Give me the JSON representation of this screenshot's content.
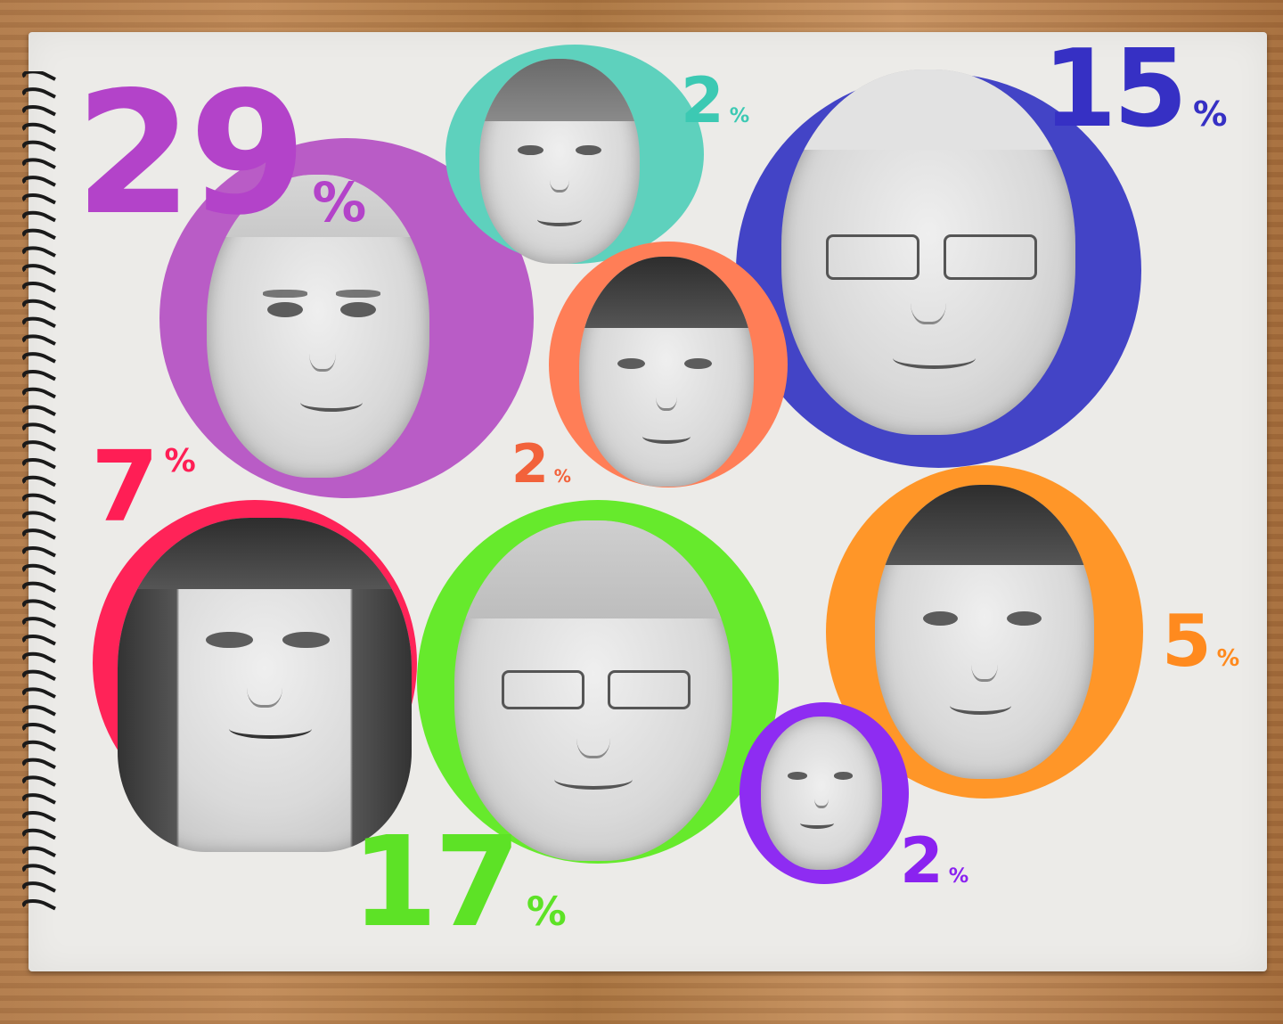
{
  "labels": {
    "biden": {
      "value": "29",
      "sign": "%",
      "color": "#b343c9"
    },
    "o_rourke": {
      "value": "2",
      "sign": "%",
      "color": "#3cc9b3"
    },
    "sanders": {
      "value": "15",
      "sign": "%",
      "color": "#3630c4"
    },
    "yang": {
      "value": "2",
      "sign": "%",
      "color": "#f2623b"
    },
    "harris": {
      "value": "7",
      "sign": "%",
      "color": "#ff1e55"
    },
    "warren": {
      "value": "17",
      "sign": "%",
      "color": "#5de226"
    },
    "buttigieg": {
      "value": "5",
      "sign": "%",
      "color": "#ff8a1e"
    },
    "booker": {
      "value": "2",
      "sign": "%",
      "color": "#8a22f0"
    }
  },
  "circle_colors": {
    "biden": "#b95cc6",
    "o_rourke": "#5ed1bd",
    "sanders": "#4344c6",
    "yang": "#ff7e57",
    "harris": "#ff2358",
    "warren": "#66ea2c",
    "buttigieg": "#ff9628",
    "booker": "#8e2cf2"
  }
}
